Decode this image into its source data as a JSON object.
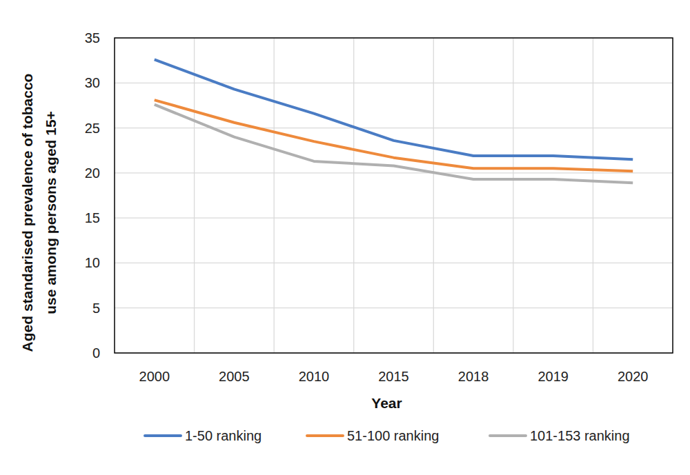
{
  "chart_data": {
    "type": "line",
    "x_label": "Year",
    "y_label": [
      "Aged standarised prevalence of tobacco",
      "use among  persons aged 15+"
    ],
    "categories": [
      "2000",
      "2005",
      "2010",
      "2015",
      "2018",
      "2019",
      "2020"
    ],
    "series": [
      {
        "name": "1-50 ranking",
        "color": "#4a7cc4",
        "values": [
          32.6,
          29.3,
          26.6,
          23.6,
          21.9,
          21.9,
          21.5
        ]
      },
      {
        "name": "51-100 ranking",
        "color": "#ee8a3c",
        "values": [
          28.1,
          25.6,
          23.5,
          21.7,
          20.5,
          20.5,
          20.2
        ]
      },
      {
        "name": "101-153 ranking",
        "color": "#b0b0b0",
        "values": [
          27.6,
          24.0,
          21.3,
          20.8,
          19.3,
          19.3,
          18.9
        ]
      }
    ],
    "ylim": [
      0,
      35
    ],
    "yticks": [
      0,
      5,
      10,
      15,
      20,
      25,
      30,
      35
    ],
    "grid": true,
    "legend": "bottom"
  }
}
